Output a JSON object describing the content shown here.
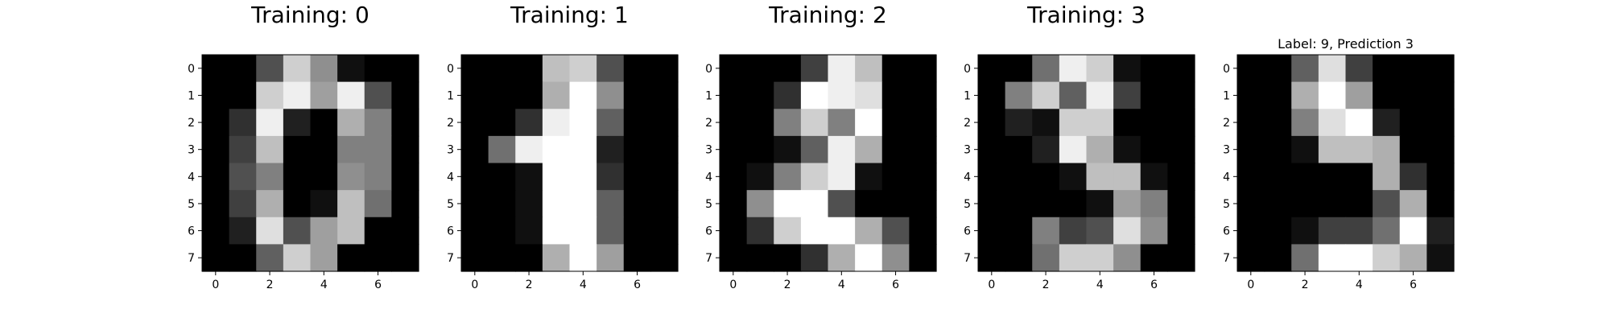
{
  "chart_data": [
    {
      "type": "heatmap",
      "title": "Training: 0",
      "colormap": "gray",
      "value_range": [
        0,
        16
      ],
      "x_ticks": [
        0,
        2,
        4,
        6
      ],
      "y_ticks": [
        0,
        1,
        2,
        3,
        4,
        5,
        6,
        7
      ],
      "grid": false,
      "values": [
        [
          0,
          0,
          5,
          13,
          9,
          1,
          0,
          0
        ],
        [
          0,
          0,
          13,
          15,
          10,
          15,
          5,
          0
        ],
        [
          0,
          3,
          15,
          2,
          0,
          11,
          8,
          0
        ],
        [
          0,
          4,
          12,
          0,
          0,
          8,
          8,
          0
        ],
        [
          0,
          5,
          8,
          0,
          0,
          9,
          8,
          0
        ],
        [
          0,
          4,
          11,
          0,
          1,
          12,
          7,
          0
        ],
        [
          0,
          2,
          14,
          5,
          10,
          12,
          0,
          0
        ],
        [
          0,
          0,
          6,
          13,
          10,
          0,
          0,
          0
        ]
      ]
    },
    {
      "type": "heatmap",
      "title": "Training: 1",
      "colormap": "gray",
      "value_range": [
        0,
        16
      ],
      "x_ticks": [
        0,
        2,
        4,
        6
      ],
      "y_ticks": [
        0,
        1,
        2,
        3,
        4,
        5,
        6,
        7
      ],
      "grid": false,
      "values": [
        [
          0,
          0,
          0,
          12,
          13,
          5,
          0,
          0
        ],
        [
          0,
          0,
          0,
          11,
          16,
          9,
          0,
          0
        ],
        [
          0,
          0,
          3,
          15,
          16,
          6,
          0,
          0
        ],
        [
          0,
          7,
          15,
          16,
          16,
          2,
          0,
          0
        ],
        [
          0,
          0,
          1,
          16,
          16,
          3,
          0,
          0
        ],
        [
          0,
          0,
          1,
          16,
          16,
          6,
          0,
          0
        ],
        [
          0,
          0,
          1,
          16,
          16,
          6,
          0,
          0
        ],
        [
          0,
          0,
          0,
          11,
          16,
          10,
          0,
          0
        ]
      ]
    },
    {
      "type": "heatmap",
      "title": "Training: 2",
      "colormap": "gray",
      "value_range": [
        0,
        16
      ],
      "x_ticks": [
        0,
        2,
        4,
        6
      ],
      "y_ticks": [
        0,
        1,
        2,
        3,
        4,
        5,
        6,
        7
      ],
      "grid": false,
      "values": [
        [
          0,
          0,
          0,
          4,
          15,
          12,
          0,
          0
        ],
        [
          0,
          0,
          3,
          16,
          15,
          14,
          0,
          0
        ],
        [
          0,
          0,
          8,
          13,
          8,
          16,
          0,
          0
        ],
        [
          0,
          0,
          1,
          6,
          15,
          11,
          0,
          0
        ],
        [
          0,
          1,
          8,
          13,
          15,
          1,
          0,
          0
        ],
        [
          0,
          9,
          16,
          16,
          5,
          0,
          0,
          0
        ],
        [
          0,
          3,
          13,
          16,
          16,
          11,
          5,
          0
        ],
        [
          0,
          0,
          0,
          3,
          11,
          16,
          9,
          0
        ]
      ]
    },
    {
      "type": "heatmap",
      "title": "Training: 3",
      "colormap": "gray",
      "value_range": [
        0,
        16
      ],
      "x_ticks": [
        0,
        2,
        4,
        6
      ],
      "y_ticks": [
        0,
        1,
        2,
        3,
        4,
        5,
        6,
        7
      ],
      "grid": false,
      "values": [
        [
          0,
          0,
          7,
          15,
          13,
          1,
          0,
          0
        ],
        [
          0,
          8,
          13,
          6,
          15,
          4,
          0,
          0
        ],
        [
          0,
          2,
          1,
          13,
          13,
          0,
          0,
          0
        ],
        [
          0,
          0,
          2,
          15,
          11,
          1,
          0,
          0
        ],
        [
          0,
          0,
          0,
          1,
          12,
          12,
          1,
          0
        ],
        [
          0,
          0,
          0,
          0,
          1,
          10,
          8,
          0
        ],
        [
          0,
          0,
          8,
          4,
          5,
          14,
          9,
          0
        ],
        [
          0,
          0,
          7,
          13,
          13,
          9,
          0,
          0
        ]
      ]
    },
    {
      "type": "heatmap",
      "title": "Label: 9, Prediction 3",
      "colormap": "gray",
      "value_range": [
        0,
        16
      ],
      "x_ticks": [
        0,
        2,
        4,
        6
      ],
      "y_ticks": [
        0,
        1,
        2,
        3,
        4,
        5,
        6,
        7
      ],
      "grid": false,
      "values": [
        [
          0,
          0,
          6,
          14,
          4,
          0,
          0,
          0
        ],
        [
          0,
          0,
          11,
          16,
          10,
          0,
          0,
          0
        ],
        [
          0,
          0,
          8,
          14,
          16,
          2,
          0,
          0
        ],
        [
          0,
          0,
          1,
          12,
          12,
          11,
          0,
          0
        ],
        [
          0,
          0,
          0,
          0,
          0,
          11,
          3,
          0
        ],
        [
          0,
          0,
          0,
          0,
          0,
          5,
          11,
          0
        ],
        [
          0,
          0,
          1,
          4,
          4,
          7,
          16,
          2
        ],
        [
          0,
          0,
          7,
          16,
          16,
          13,
          11,
          1
        ]
      ]
    }
  ]
}
